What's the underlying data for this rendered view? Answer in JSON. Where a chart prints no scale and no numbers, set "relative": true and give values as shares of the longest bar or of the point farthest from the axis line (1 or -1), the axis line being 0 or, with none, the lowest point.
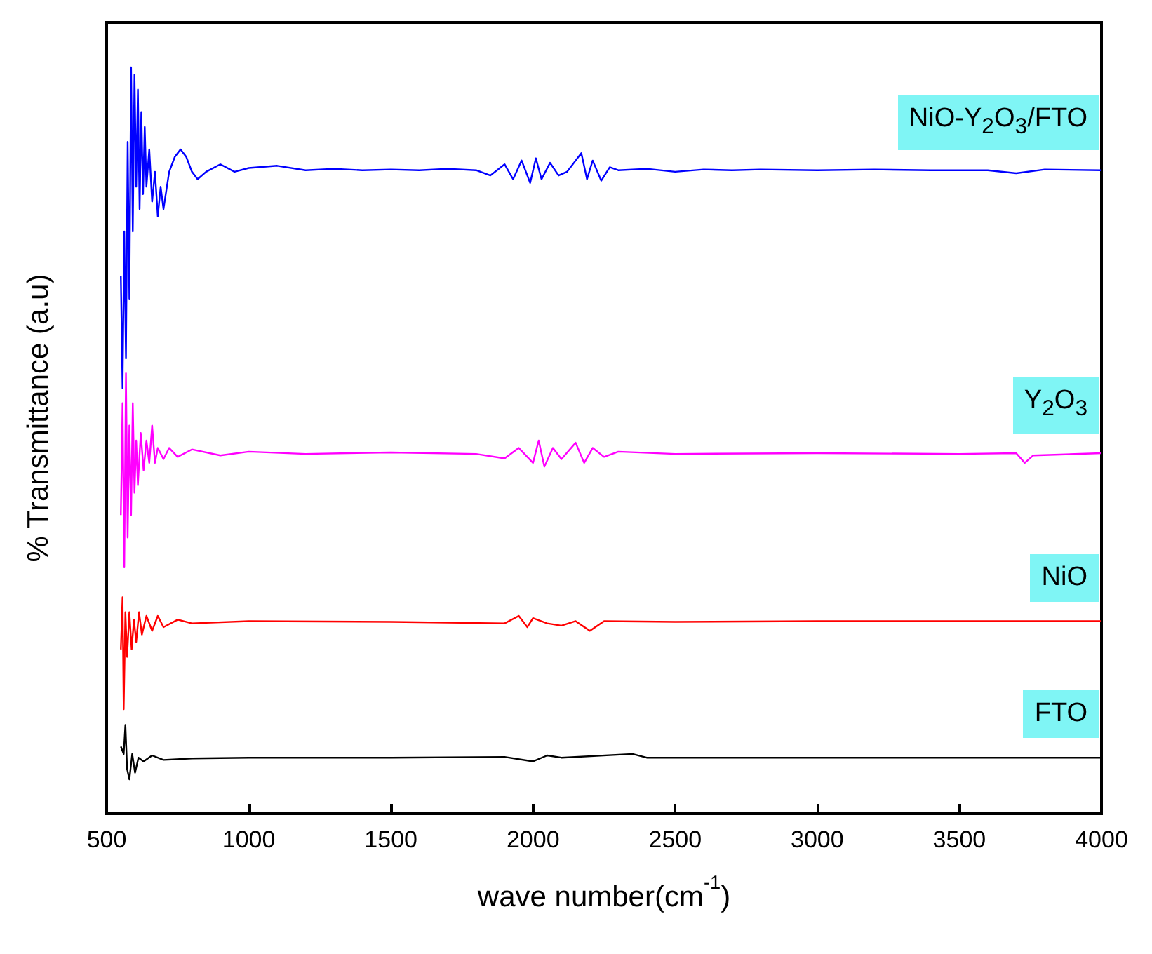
{
  "chart_data": {
    "type": "line",
    "relative": true,
    "xlabel": "wave number(cm$^{-1}$)",
    "ylabel": "% Transmittance (a.u)",
    "xlim": [
      500,
      4000
    ],
    "xticks": [
      500,
      1000,
      1500,
      2000,
      2500,
      3000,
      3500,
      4000
    ],
    "grid": false,
    "legend": false,
    "marker": "none",
    "line_style": "solid",
    "series": [
      {
        "name": "NiO-Y$_{2}$O$_{3}$/FTO",
        "color": "#0000ff",
        "x": [
          550,
          556,
          562,
          568,
          574,
          580,
          586,
          592,
          598,
          604,
          610,
          616,
          622,
          628,
          634,
          640,
          650,
          660,
          670,
          680,
          690,
          700,
          720,
          740,
          760,
          780,
          800,
          820,
          850,
          900,
          950,
          1000,
          1100,
          1200,
          1300,
          1400,
          1500,
          1600,
          1700,
          1800,
          1850,
          1900,
          1930,
          1960,
          1990,
          2010,
          2030,
          2060,
          2090,
          2120,
          2150,
          2170,
          2190,
          2210,
          2240,
          2270,
          2300,
          2400,
          2500,
          2600,
          2700,
          2800,
          3000,
          3200,
          3400,
          3600,
          3700,
          3800,
          4000
        ],
        "values": [
          0.72,
          0.57,
          0.78,
          0.61,
          0.9,
          0.69,
          1.0,
          0.78,
          0.99,
          0.84,
          0.97,
          0.81,
          0.94,
          0.83,
          0.92,
          0.84,
          0.89,
          0.82,
          0.86,
          0.8,
          0.84,
          0.81,
          0.86,
          0.88,
          0.89,
          0.88,
          0.86,
          0.85,
          0.86,
          0.87,
          0.86,
          0.865,
          0.868,
          0.862,
          0.864,
          0.862,
          0.863,
          0.862,
          0.864,
          0.862,
          0.855,
          0.87,
          0.85,
          0.875,
          0.845,
          0.878,
          0.85,
          0.872,
          0.855,
          0.86,
          0.875,
          0.885,
          0.85,
          0.875,
          0.848,
          0.866,
          0.862,
          0.864,
          0.86,
          0.863,
          0.862,
          0.863,
          0.862,
          0.863,
          0.862,
          0.862,
          0.858,
          0.863,
          0.862
        ]
      },
      {
        "name": "Y$_{2}$O$_{3}$",
        "color": "#ff00ff",
        "x": [
          550,
          556,
          562,
          568,
          574,
          580,
          586,
          592,
          598,
          604,
          610,
          620,
          630,
          640,
          650,
          660,
          670,
          680,
          700,
          720,
          750,
          800,
          900,
          1000,
          1200,
          1500,
          1800,
          1900,
          1950,
          2000,
          2020,
          2040,
          2070,
          2100,
          2150,
          2180,
          2210,
          2250,
          2300,
          2500,
          3000,
          3500,
          3700,
          3730,
          3760,
          4000
        ],
        "values": [
          0.4,
          0.55,
          0.33,
          0.59,
          0.37,
          0.52,
          0.4,
          0.55,
          0.43,
          0.5,
          0.44,
          0.51,
          0.46,
          0.5,
          0.47,
          0.52,
          0.47,
          0.49,
          0.475,
          0.49,
          0.478,
          0.488,
          0.48,
          0.485,
          0.482,
          0.484,
          0.482,
          0.476,
          0.49,
          0.47,
          0.5,
          0.465,
          0.49,
          0.475,
          0.497,
          0.47,
          0.49,
          0.478,
          0.485,
          0.482,
          0.483,
          0.482,
          0.483,
          0.47,
          0.48,
          0.483
        ]
      },
      {
        "name": "NiO",
        "color": "#ff0000",
        "x": [
          550,
          556,
          560,
          566,
          572,
          580,
          588,
          596,
          604,
          614,
          624,
          640,
          660,
          680,
          700,
          750,
          800,
          1000,
          1500,
          1900,
          1950,
          1980,
          2000,
          2050,
          2100,
          2150,
          2200,
          2250,
          2500,
          3000,
          4000
        ],
        "values": [
          0.22,
          0.29,
          0.14,
          0.27,
          0.21,
          0.27,
          0.22,
          0.26,
          0.23,
          0.27,
          0.24,
          0.265,
          0.245,
          0.265,
          0.25,
          0.26,
          0.255,
          0.258,
          0.257,
          0.255,
          0.265,
          0.25,
          0.262,
          0.255,
          0.252,
          0.258,
          0.245,
          0.258,
          0.257,
          0.258,
          0.258
        ]
      },
      {
        "name": "FTO",
        "color": "#000000",
        "x": [
          550,
          560,
          566,
          572,
          580,
          590,
          600,
          612,
          630,
          660,
          700,
          800,
          1000,
          1500,
          1900,
          2000,
          2050,
          2100,
          2350,
          2400,
          3000,
          4000
        ],
        "values": [
          0.09,
          0.08,
          0.119,
          0.06,
          0.046,
          0.08,
          0.055,
          0.075,
          0.07,
          0.078,
          0.072,
          0.074,
          0.075,
          0.075,
          0.076,
          0.07,
          0.078,
          0.075,
          0.08,
          0.075,
          0.075,
          0.075
        ]
      }
    ]
  }
}
